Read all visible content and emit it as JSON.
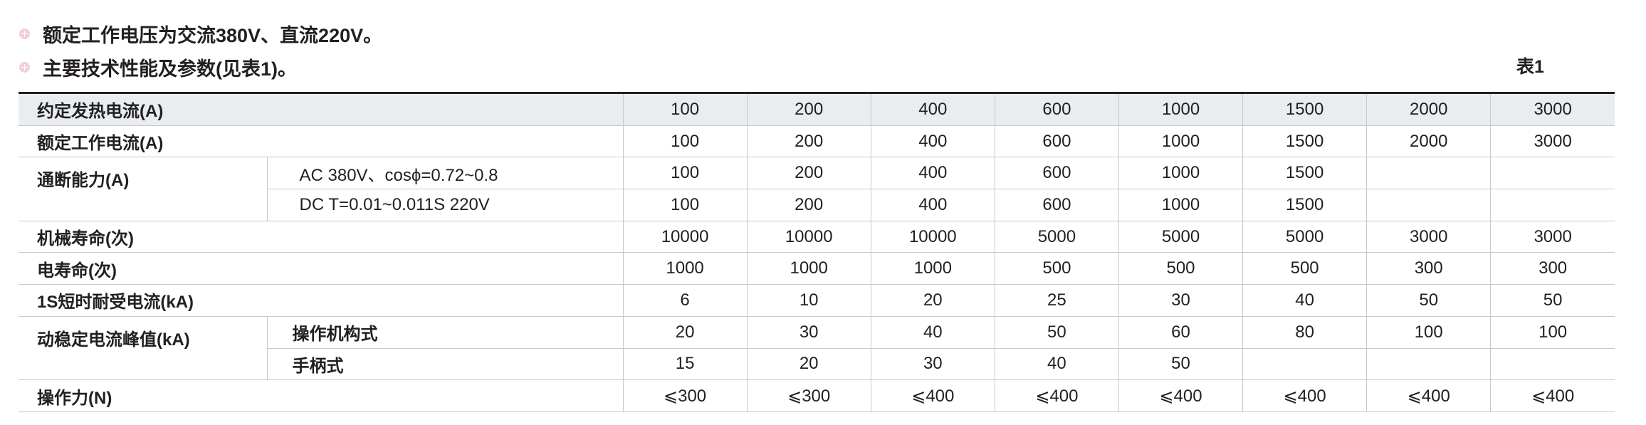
{
  "intro": {
    "lines": [
      "额定工作电压为交流380V、直流220V。",
      "主要技术性能及参数(见表1)。"
    ],
    "bullet_icon": "pink-circle-plus-icon",
    "bullet_color": "#f2cfe0"
  },
  "table": {
    "caption": "表1",
    "header_bg": "#e9edf0",
    "rows": [
      {
        "label": "约定发热电流(A)",
        "values": [
          "100",
          "200",
          "400",
          "600",
          "1000",
          "1500",
          "2000",
          "3000"
        ]
      },
      {
        "label": "额定工作电流(A)",
        "values": [
          "100",
          "200",
          "400",
          "600",
          "1000",
          "1500",
          "2000",
          "3000"
        ]
      },
      {
        "label": "通断能力(A)",
        "sublabel": "AC 380V、cosϕ=0.72~0.8",
        "values": [
          "100",
          "200",
          "400",
          "600",
          "1000",
          "1500",
          "",
          ""
        ]
      },
      {
        "sublabel": "DC T=0.01~0.011S  220V",
        "values": [
          "100",
          "200",
          "400",
          "600",
          "1000",
          "1500",
          "",
          ""
        ]
      },
      {
        "label": "机械寿命(次)",
        "values": [
          "10000",
          "10000",
          "10000",
          "5000",
          "5000",
          "5000",
          "3000",
          "3000"
        ]
      },
      {
        "label": "电寿命(次)",
        "values": [
          "1000",
          "1000",
          "1000",
          "500",
          "500",
          "500",
          "300",
          "300"
        ]
      },
      {
        "label": "1S短时耐受电流(kA)",
        "values": [
          "6",
          "10",
          "20",
          "25",
          "30",
          "40",
          "50",
          "50"
        ]
      },
      {
        "label": "动稳定电流峰值(kA)",
        "sublabel": "操作机构式",
        "values": [
          "20",
          "30",
          "40",
          "50",
          "60",
          "80",
          "100",
          "100"
        ]
      },
      {
        "sublabel": "手柄式",
        "values": [
          "15",
          "20",
          "30",
          "40",
          "50",
          "",
          "",
          ""
        ]
      },
      {
        "label": "操作力(N)",
        "values": [
          "⩽300",
          "⩽300",
          "⩽400",
          "⩽400",
          "⩽400",
          "⩽400",
          "⩽400",
          "⩽400"
        ]
      }
    ]
  }
}
